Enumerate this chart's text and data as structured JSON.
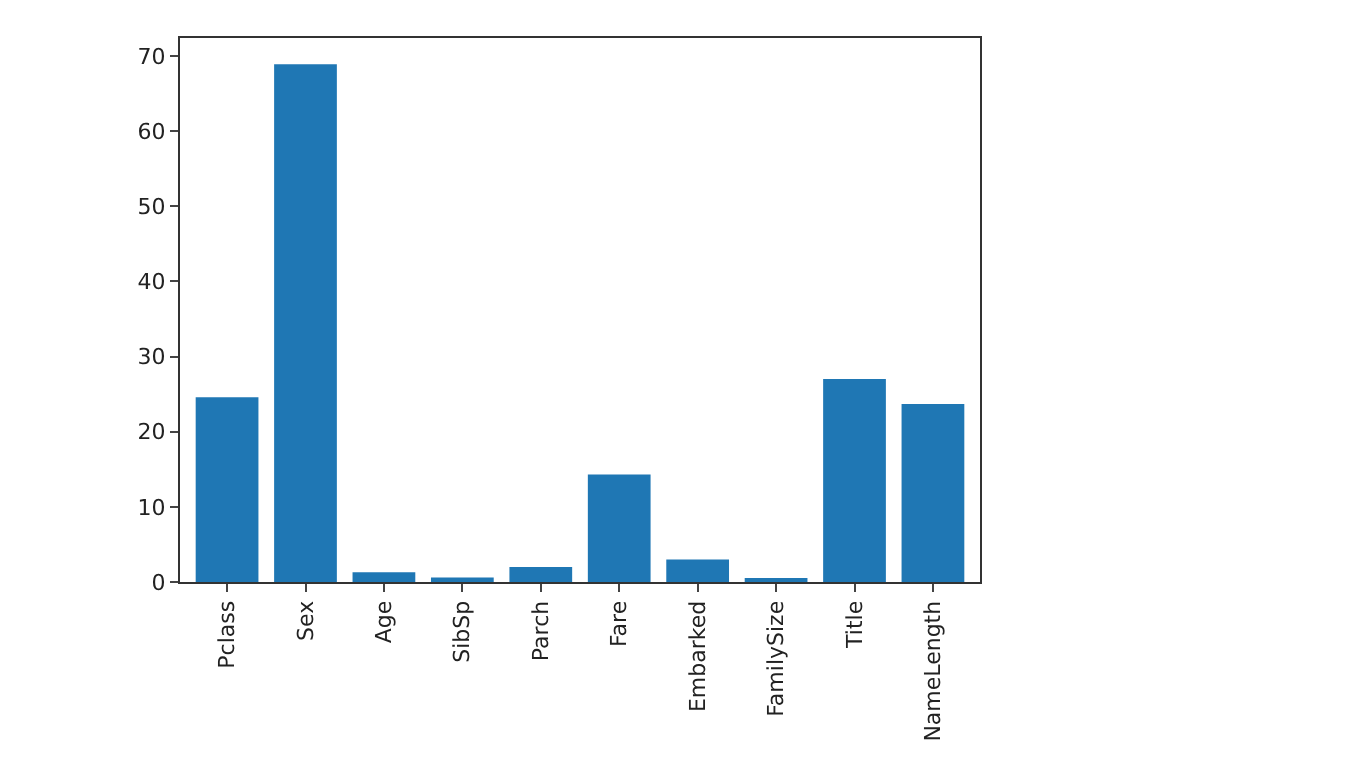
{
  "chart_data": {
    "type": "bar",
    "categories": [
      "Pclass",
      "Sex",
      "Age",
      "SibSp",
      "Parch",
      "Fare",
      "Embarked",
      "FamilySize",
      "Title",
      "NameLength"
    ],
    "values": [
      24.6,
      68.9,
      1.3,
      0.6,
      2.0,
      14.3,
      3.0,
      0.4,
      27.0,
      23.7
    ],
    "color": "#1f77b4",
    "ylim": [
      0,
      72.4
    ],
    "yticks": [
      0,
      10,
      20,
      30,
      40,
      50,
      60,
      70
    ]
  }
}
